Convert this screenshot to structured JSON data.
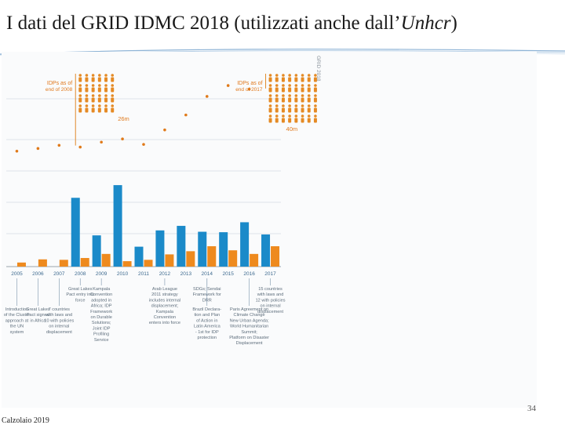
{
  "slide": {
    "title_main": "I dati del GRID IDMC 2018 (utilizzati anche dall’",
    "title_italic": "Unhcr",
    "title_close": ")",
    "footer": "Calzolaio 2019",
    "page_number": "34"
  },
  "chart_data": {
    "type": "bar",
    "categories": [
      "2005",
      "2006",
      "2007",
      "2008",
      "2009",
      "2010",
      "2011",
      "2012",
      "2013",
      "2014",
      "2015",
      "2016",
      "2017"
    ],
    "series": [
      {
        "name": "",
        "color": "#1b8ac9",
        "values": [
          null,
          null,
          null,
          15.2,
          6.9,
          18.0,
          4.4,
          8.0,
          9.0,
          7.7,
          7.6,
          9.8,
          7.1
        ]
      },
      {
        "name": "",
        "color": "#ee8a1e",
        "values": [
          0.9,
          1.6,
          1.5,
          1.9,
          2.8,
          1.2,
          1.5,
          2.7,
          3.4,
          4.5,
          3.6,
          2.8,
          4.5
        ]
      }
    ],
    "dots": {
      "color": "#e07a1a",
      "values": [
        25.5,
        26.1,
        26.8,
        26.4,
        27.5,
        28.2,
        27.0,
        30.2,
        33.5,
        37.6,
        40.0,
        39.2,
        39.0
      ]
    },
    "ylim": [
      0,
      44
    ],
    "grid": true,
    "annotations": [
      {
        "text_line1": "IDPs as of",
        "text_line2": "end of 2008",
        "value_label": "26m",
        "year": "2008",
        "icon_rows": 4,
        "icon_cols": 6
      },
      {
        "text_line1": "IDPs as of",
        "text_line2": "end of 2017",
        "value_label": "40m",
        "year": "2017",
        "icon_rows": 5,
        "icon_cols": 8
      }
    ],
    "source_label": "GRID 2018",
    "timeline_upper": [
      {
        "year": "2008",
        "lines": [
          "Great Lakes",
          "Pact entry into",
          "force"
        ]
      },
      {
        "year": "2009",
        "lines": [
          "Kampala",
          "Convention",
          "adopted in",
          "Africa; IDP",
          "Framework",
          "on Durable",
          "Solutions;",
          "Joint IDP",
          "Profiling",
          "Service"
        ]
      },
      {
        "year": "2012",
        "lines": [
          "Arab League",
          "2011 strategy",
          "includes internal",
          "displacement;",
          "Kampala",
          "Convention",
          "enters into force"
        ]
      },
      {
        "year": "2014",
        "lines": [
          "SDGs; Sendai",
          "Framework for",
          "DRR"
        ]
      },
      {
        "year": "2017",
        "lines": [
          "15 countries",
          "with laws and",
          "12 with policies",
          "on internal",
          "displacement"
        ]
      }
    ],
    "timeline_lower": [
      {
        "year": "2005",
        "lines": [
          "Introduction",
          "of the Cluster",
          "approach at",
          "the UN",
          "system"
        ]
      },
      {
        "year": "2006",
        "lines": [
          "Great Lakes",
          "Pact signed",
          "in Africa"
        ]
      },
      {
        "year": "2007",
        "lines": [
          "7 countries",
          "with laws and",
          "10 with policies",
          "on internal",
          "displacement"
        ]
      },
      {
        "year": "2014",
        "lines": [
          "Brazil Declara-",
          "tion and Plan",
          "of Action in",
          "Latin America",
          "- 1st for IDP",
          "protection"
        ]
      },
      {
        "year": "2016",
        "lines": [
          "Paris Agreement on",
          "Climate Change",
          "New Urban Agenda;",
          "World Humanitarian",
          "Summit;",
          "Platform on Disaster",
          "Displacement"
        ]
      }
    ]
  }
}
